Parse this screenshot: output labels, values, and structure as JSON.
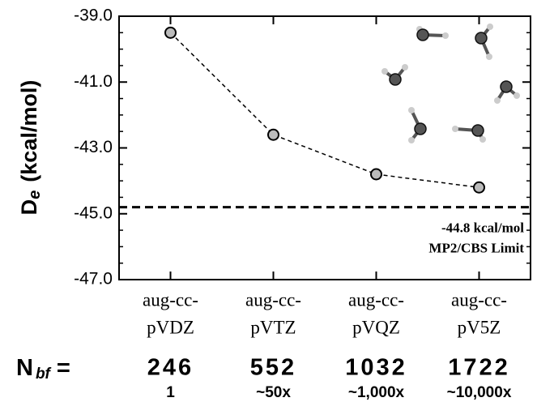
{
  "chart_data": {
    "type": "line",
    "ylabel": {
      "main": "D",
      "sub": "e",
      "unit": "(kcal/mol)"
    },
    "categories": [
      [
        "aug-cc-",
        "pVDZ"
      ],
      [
        "aug-cc-",
        "pVTZ"
      ],
      [
        "aug-cc-",
        "pVQZ"
      ],
      [
        "aug-cc-",
        "pV5Z"
      ]
    ],
    "values": [
      -39.5,
      -42.6,
      -43.8,
      -44.2
    ],
    "color": "#000000",
    "ylim": [
      -47,
      -39
    ],
    "yticks": [
      {
        "value": -39,
        "label": "-39.0"
      },
      {
        "value": -41,
        "label": "-41.0"
      },
      {
        "value": -43,
        "label": "-43.0"
      },
      {
        "value": -45,
        "label": "-45.0"
      },
      {
        "value": -47,
        "label": "-47.0"
      }
    ],
    "minor_per_major": 4,
    "reference": {
      "value": -44.8,
      "label": "-44.8 kcal/mol",
      "note": "MP2/CBS Limit"
    },
    "basis_label": {
      "main": "N",
      "sub": "bf",
      "eq": "="
    },
    "basis_functions": [
      246,
      552,
      1032,
      1722
    ],
    "cost": [
      "1",
      "~50x",
      "~1,000x",
      "~10,000x"
    ]
  }
}
